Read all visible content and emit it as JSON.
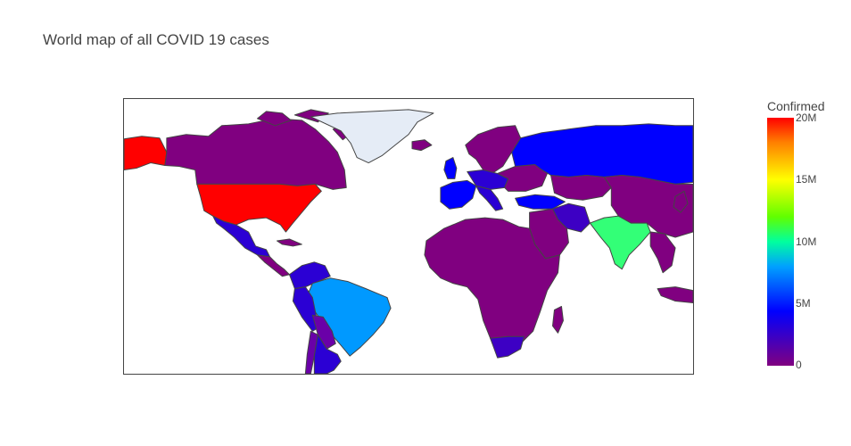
{
  "title": "World map of all COVID 19 cases",
  "colorbar": {
    "title": "Confirmed",
    "ticks": [
      "20M",
      "15M",
      "10M",
      "5M",
      "0"
    ]
  },
  "colors": {
    "low": "#800080",
    "mid_blue": "#0000ff",
    "mid_light": "#00a0ff",
    "green": "#33ff77",
    "yellow": "#ffff00",
    "orange": "#ff8000",
    "high": "#ff0000",
    "nodata": "#e5ecf6",
    "border": "#444444"
  },
  "chart_data": {
    "type": "choropleth",
    "title": "World map of all COVID 19 cases",
    "colorbar_title": "Confirmed",
    "range": [
      0,
      20000000
    ],
    "colorbar_ticks": [
      "0",
      "5M",
      "10M",
      "15M",
      "20M"
    ],
    "countries": [
      {
        "name": "United States",
        "value": 20000000
      },
      {
        "name": "India",
        "value": 10500000
      },
      {
        "name": "Brazil",
        "value": 8000000
      },
      {
        "name": "Russia",
        "value": 3400000
      },
      {
        "name": "United Kingdom",
        "value": 3000000
      },
      {
        "name": "France",
        "value": 2800000
      },
      {
        "name": "Turkey",
        "value": 2300000
      },
      {
        "name": "Italy",
        "value": 2300000
      },
      {
        "name": "Spain",
        "value": 2000000
      },
      {
        "name": "Germany",
        "value": 1900000
      },
      {
        "name": "Colombia",
        "value": 1700000
      },
      {
        "name": "Argentina",
        "value": 1700000
      },
      {
        "name": "Mexico",
        "value": 1500000
      },
      {
        "name": "Poland",
        "value": 1400000
      },
      {
        "name": "Iran",
        "value": 1300000
      },
      {
        "name": "South Africa",
        "value": 1200000
      },
      {
        "name": "Peru",
        "value": 1000000
      },
      {
        "name": "Canada",
        "value": 650000
      },
      {
        "name": "Greenland",
        "value": null
      }
    ]
  }
}
